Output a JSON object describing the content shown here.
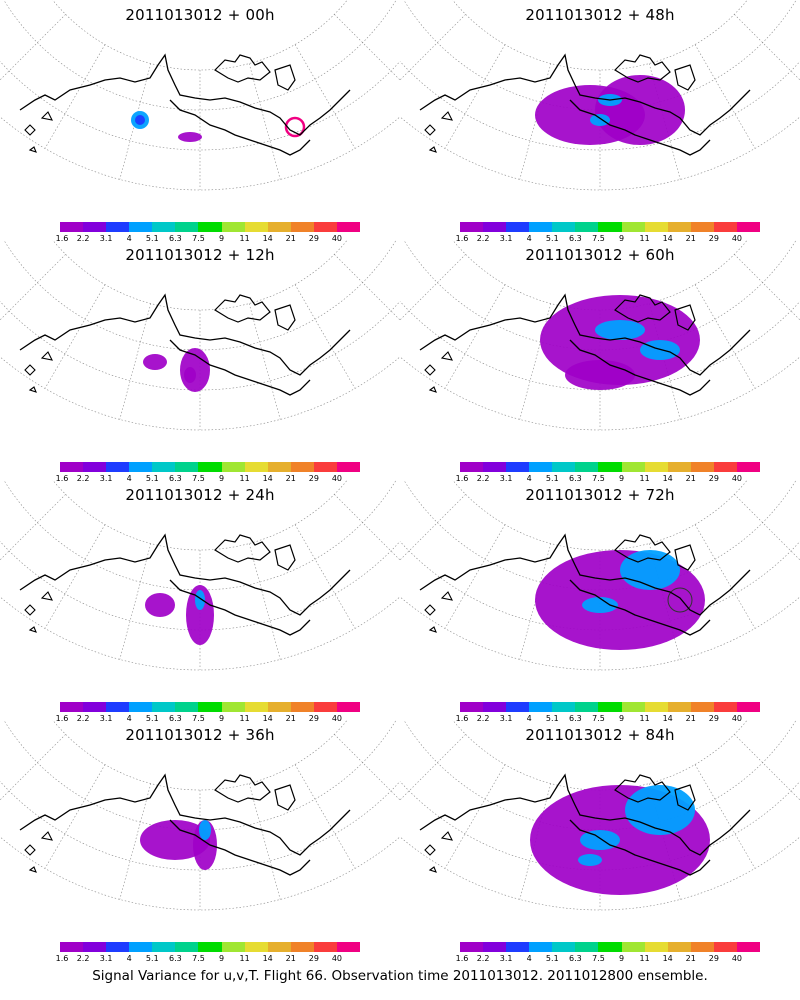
{
  "panels": [
    {
      "title": "2011013012 + 00h",
      "lead": "00h"
    },
    {
      "title": "2011013012 + 48h",
      "lead": "48h"
    },
    {
      "title": "2011013012 + 12h",
      "lead": "12h"
    },
    {
      "title": "2011013012 + 60h",
      "lead": "60h"
    },
    {
      "title": "2011013012 + 24h",
      "lead": "24h"
    },
    {
      "title": "2011013012 + 72h",
      "lead": "72h"
    },
    {
      "title": "2011013012 + 36h",
      "lead": "36h"
    },
    {
      "title": "2011013012 + 84h",
      "lead": "84h"
    }
  ],
  "colorbar": {
    "colors": [
      "#a000c8",
      "#8200dc",
      "#1e3cff",
      "#00a0ff",
      "#00c8c8",
      "#00d28c",
      "#00dc00",
      "#a0e632",
      "#e6dc32",
      "#e6af2d",
      "#f08228",
      "#fa3c3c",
      "#f00082"
    ],
    "ticks": [
      "1.6",
      "2.2",
      "3.1",
      "4",
      "5.1",
      "6.3",
      "7.5",
      "9",
      "11",
      "14",
      "21",
      "29",
      "40"
    ]
  },
  "footer": "Signal Variance for u,v,T. Flight 66. Observation time 2011013012. 2011012800 ensemble.",
  "colors": {
    "low": "#a000c8",
    "mid": "#1e3cff",
    "cyan": "#00a0ff"
  }
}
